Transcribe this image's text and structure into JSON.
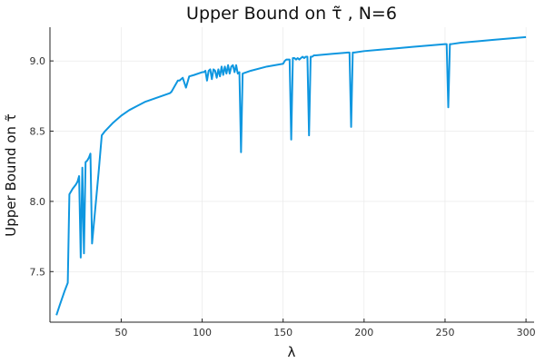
{
  "chart_data": {
    "type": "line",
    "title": "Upper Bound on τ̃ , N=6",
    "xlabel": "λ",
    "ylabel": "Upper Bound on τ̃",
    "xlim": [
      6,
      305
    ],
    "ylim": [
      7.14,
      9.24
    ],
    "xticks": [
      50,
      100,
      150,
      200,
      250,
      300
    ],
    "yticks": [
      7.5,
      8.0,
      8.5,
      9.0
    ],
    "xtick_labels": [
      "50",
      "100",
      "150",
      "200",
      "250",
      "300"
    ],
    "ytick_labels": [
      "7.5",
      "8.0",
      "8.5",
      "9.0"
    ],
    "grid": true,
    "legend": "none",
    "series": [
      {
        "color": "#0f97e0",
        "x": [
          10,
          12,
          15,
          17,
          18,
          20,
          22,
          23,
          24,
          25,
          26,
          27,
          28,
          29,
          30,
          31,
          32,
          34,
          36,
          38,
          40,
          45,
          50,
          55,
          60,
          65,
          70,
          75,
          80,
          81,
          85,
          86,
          87,
          88,
          90,
          92,
          95,
          100,
          101,
          102,
          103,
          104,
          105,
          106,
          107,
          108,
          109,
          110,
          111,
          112,
          113,
          114,
          115,
          116,
          117,
          118,
          119,
          120,
          121,
          122,
          123,
          124,
          125,
          130,
          140,
          150,
          151,
          152,
          153,
          154,
          155,
          156,
          157,
          158,
          159,
          160,
          161,
          162,
          163,
          164,
          165,
          166,
          167,
          168,
          169,
          170,
          180,
          190,
          191,
          192,
          193,
          194,
          200,
          210,
          220,
          230,
          240,
          250,
          251,
          252,
          253,
          254,
          260,
          270,
          280,
          290,
          300
        ],
        "y": [
          7.19,
          7.26,
          7.36,
          7.42,
          8.05,
          8.09,
          8.12,
          8.14,
          8.18,
          7.6,
          8.24,
          7.63,
          8.28,
          8.29,
          8.31,
          8.34,
          7.7,
          7.95,
          8.2,
          8.47,
          8.5,
          8.56,
          8.61,
          8.65,
          8.68,
          8.71,
          8.73,
          8.75,
          8.77,
          8.78,
          8.86,
          8.86,
          8.87,
          8.88,
          8.81,
          8.89,
          8.9,
          8.92,
          8.92,
          8.93,
          8.86,
          8.93,
          8.94,
          8.87,
          8.94,
          8.93,
          8.88,
          8.94,
          8.89,
          8.96,
          8.9,
          8.96,
          8.91,
          8.97,
          8.91,
          8.96,
          8.97,
          8.92,
          8.97,
          8.91,
          8.92,
          8.35,
          8.91,
          8.93,
          8.96,
          8.98,
          9.0,
          9.01,
          9.01,
          9.01,
          8.44,
          9.02,
          9.02,
          9.01,
          9.02,
          9.01,
          9.02,
          9.03,
          9.02,
          9.03,
          9.03,
          8.47,
          9.03,
          9.03,
          9.04,
          9.04,
          9.05,
          9.06,
          9.06,
          8.53,
          9.06,
          9.06,
          9.07,
          9.08,
          9.09,
          9.1,
          9.11,
          9.12,
          9.12,
          8.67,
          9.12,
          9.12,
          9.13,
          9.14,
          9.15,
          9.16,
          9.17
        ]
      }
    ]
  }
}
